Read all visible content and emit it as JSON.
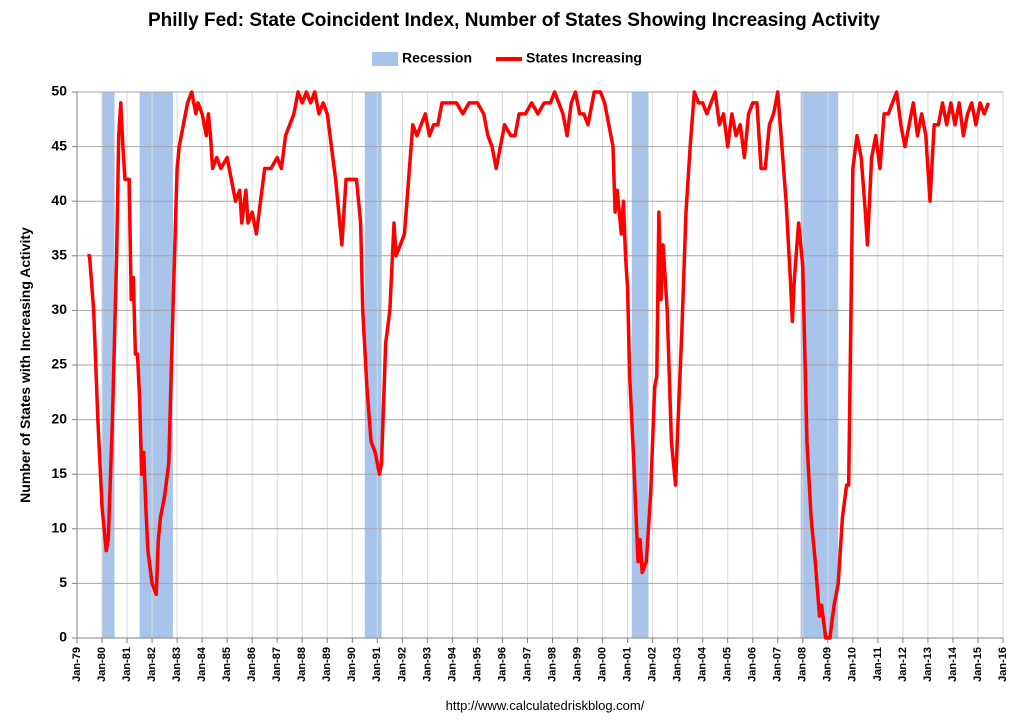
{
  "chart_data": {
    "type": "line",
    "title": "Philly Fed: State Coincident Index, Number of States Showing Increasing Activity",
    "y_label": "Number of States with Increasing Activity",
    "source": "http://www.calculatedriskblog.com/",
    "recessions": {
      "name": "Recession",
      "color": "#a9c4eb",
      "periods": [
        {
          "start": "1980-01",
          "end": "1980-07"
        },
        {
          "start": "1981-07",
          "end": "1982-11"
        },
        {
          "start": "1990-07",
          "end": "1991-03"
        },
        {
          "start": "2001-03",
          "end": "2001-11"
        },
        {
          "start": "2007-12",
          "end": "2009-06"
        }
      ]
    },
    "x": [
      "1979-06",
      "1979-07",
      "1979-09",
      "1979-11",
      "1980-01",
      "1980-03",
      "1980-04",
      "1980-06",
      "1980-08",
      "1980-09",
      "1980-10",
      "1980-11",
      "1980-12",
      "1981-02",
      "1981-03",
      "1981-04",
      "1981-05",
      "1981-06",
      "1981-07",
      "1981-08",
      "1981-09",
      "1981-10",
      "1981-11",
      "1982-01",
      "1982-03",
      "1982-04",
      "1982-05",
      "1982-07",
      "1982-09",
      "1982-11",
      "1983-01",
      "1983-02",
      "1983-04",
      "1983-06",
      "1983-08",
      "1983-10",
      "1983-11",
      "1984-01",
      "1984-03",
      "1984-04",
      "1984-05",
      "1984-06",
      "1984-08",
      "1984-10",
      "1985-01",
      "1985-03",
      "1985-05",
      "1985-07",
      "1985-08",
      "1985-10",
      "1985-11",
      "1986-01",
      "1986-03",
      "1986-05",
      "1986-07",
      "1986-10",
      "1987-01",
      "1987-03",
      "1987-05",
      "1987-07",
      "1987-09",
      "1987-11",
      "1988-01",
      "1988-03",
      "1988-05",
      "1988-07",
      "1988-09",
      "1988-11",
      "1989-01",
      "1989-03",
      "1989-05",
      "1989-07",
      "1989-08",
      "1989-10",
      "1990-01",
      "1990-03",
      "1990-05",
      "1990-06",
      "1990-08",
      "1990-10",
      "1990-12",
      "1991-02",
      "1991-03",
      "1991-05",
      "1991-07",
      "1991-09",
      "1991-10",
      "1991-12",
      "1992-02",
      "1992-04",
      "1992-06",
      "1992-08",
      "1992-10",
      "1992-12",
      "1993-02",
      "1993-04",
      "1993-06",
      "1993-08",
      "1993-12",
      "1994-03",
      "1994-06",
      "1994-09",
      "1995-01",
      "1995-04",
      "1995-06",
      "1995-08",
      "1995-10",
      "1995-12",
      "1996-02",
      "1996-05",
      "1996-07",
      "1996-09",
      "1996-12",
      "1997-03",
      "1997-06",
      "1997-09",
      "1997-12",
      "1998-02",
      "1998-04",
      "1998-06",
      "1998-08",
      "1998-10",
      "1998-12",
      "1999-02",
      "1999-04",
      "1999-06",
      "1999-09",
      "1999-12",
      "2000-02",
      "2000-04",
      "2000-06",
      "2000-07",
      "2000-08",
      "2000-10",
      "2000-11",
      "2000-12",
      "2001-01",
      "2001-02",
      "2001-04",
      "2001-06",
      "2001-07",
      "2001-08",
      "2001-10",
      "2001-12",
      "2002-02",
      "2002-03",
      "2002-04",
      "2002-05",
      "2002-06",
      "2002-08",
      "2002-10",
      "2002-12",
      "2003-01",
      "2003-03",
      "2003-05",
      "2003-07",
      "2003-09",
      "2003-11",
      "2004-01",
      "2004-03",
      "2004-05",
      "2004-07",
      "2004-09",
      "2004-11",
      "2005-01",
      "2005-03",
      "2005-05",
      "2005-07",
      "2005-09",
      "2005-11",
      "2006-01",
      "2006-03",
      "2006-05",
      "2006-07",
      "2006-09",
      "2006-11",
      "2007-01",
      "2007-03",
      "2007-05",
      "2007-07",
      "2007-08",
      "2007-09",
      "2007-11",
      "2008-01",
      "2008-03",
      "2008-05",
      "2008-07",
      "2008-09",
      "2008-10",
      "2008-12",
      "2009-02",
      "2009-04",
      "2009-06",
      "2009-08",
      "2009-10",
      "2009-11",
      "2010-01",
      "2010-03",
      "2010-05",
      "2010-07",
      "2010-08",
      "2010-10",
      "2010-12",
      "2011-02",
      "2011-04",
      "2011-06",
      "2011-08",
      "2011-10",
      "2011-12",
      "2012-02",
      "2012-04",
      "2012-06",
      "2012-08",
      "2012-10",
      "2012-12",
      "2013-02",
      "2013-04",
      "2013-06",
      "2013-08",
      "2013-10",
      "2013-12",
      "2014-02",
      "2014-04",
      "2014-06",
      "2014-08",
      "2014-10",
      "2014-12",
      "2015-02",
      "2015-04",
      "2015-06"
    ],
    "series": [
      {
        "name": "States Increasing",
        "color": "#ff0000",
        "values": [
          35,
          35,
          30,
          20,
          12,
          8,
          9,
          20,
          35,
          46,
          49,
          45,
          42,
          42,
          31,
          33,
          26,
          26,
          22,
          15,
          17,
          12,
          8,
          5,
          4,
          9,
          11,
          13,
          16,
          30,
          43,
          45,
          47,
          49,
          50,
          48,
          49,
          48,
          46,
          48,
          46,
          43,
          44,
          43,
          44,
          42,
          40,
          41,
          38,
          41,
          38,
          39,
          37,
          40,
          43,
          43,
          44,
          43,
          46,
          47,
          48,
          50,
          49,
          50,
          49,
          50,
          48,
          49,
          48,
          45,
          42,
          38,
          36,
          42,
          42,
          42,
          38,
          30,
          23,
          18,
          17,
          15,
          16,
          27,
          30,
          38,
          35,
          36,
          37,
          42,
          47,
          46,
          47,
          48,
          46,
          47,
          47,
          49,
          49,
          49,
          48,
          49,
          49,
          48,
          46,
          45,
          43,
          45,
          47,
          46,
          46,
          48,
          48,
          49,
          48,
          49,
          49,
          50,
          49,
          48,
          46,
          49,
          50,
          48,
          48,
          47,
          50,
          50,
          49,
          47,
          45,
          39,
          41,
          37,
          40,
          35,
          32,
          24,
          16,
          7,
          9,
          6,
          7,
          13,
          23,
          24,
          39,
          31,
          36,
          30,
          18,
          14,
          19,
          28,
          39,
          45,
          50,
          49,
          49,
          48,
          49,
          50,
          47,
          48,
          45,
          48,
          46,
          47,
          44,
          48,
          49,
          49,
          43,
          43,
          47,
          48,
          50,
          45,
          40,
          33,
          29,
          33,
          38,
          34,
          18,
          11,
          7,
          2,
          3,
          0,
          0,
          3,
          5,
          11,
          14,
          14,
          43,
          46,
          44,
          39,
          36,
          44,
          46,
          43,
          48,
          48,
          49,
          50,
          47,
          45,
          47,
          49,
          46,
          48,
          46,
          40,
          47,
          47,
          49,
          47,
          49,
          47,
          49,
          46,
          48,
          49,
          47,
          49,
          48,
          49
        ]
      }
    ],
    "xlim": [
      "1979-01",
      "2016-01"
    ],
    "xticks": [
      {
        "value": "1979-01",
        "label": "Jan-79"
      },
      {
        "value": "1980-01",
        "label": "Jan-80"
      },
      {
        "value": "1981-01",
        "label": "Jan-81"
      },
      {
        "value": "1982-01",
        "label": "Jan-82"
      },
      {
        "value": "1983-01",
        "label": "Jan-83"
      },
      {
        "value": "1984-01",
        "label": "Jan-84"
      },
      {
        "value": "1985-01",
        "label": "Jan-85"
      },
      {
        "value": "1986-01",
        "label": "Jan-86"
      },
      {
        "value": "1987-01",
        "label": "Jan-87"
      },
      {
        "value": "1988-01",
        "label": "Jan-88"
      },
      {
        "value": "1989-01",
        "label": "Jan-89"
      },
      {
        "value": "1990-01",
        "label": "Jan-90"
      },
      {
        "value": "1991-01",
        "label": "Jan-91"
      },
      {
        "value": "1992-01",
        "label": "Jan-92"
      },
      {
        "value": "1993-01",
        "label": "Jan-93"
      },
      {
        "value": "1994-01",
        "label": "Jan-94"
      },
      {
        "value": "1995-01",
        "label": "Jan-95"
      },
      {
        "value": "1996-01",
        "label": "Jan-96"
      },
      {
        "value": "1997-01",
        "label": "Jan-97"
      },
      {
        "value": "1998-01",
        "label": "Jan-98"
      },
      {
        "value": "1999-01",
        "label": "Jan-99"
      },
      {
        "value": "2000-01",
        "label": "Jan-00"
      },
      {
        "value": "2001-01",
        "label": "Jan-01"
      },
      {
        "value": "2002-01",
        "label": "Jan-02"
      },
      {
        "value": "2003-01",
        "label": "Jan-03"
      },
      {
        "value": "2004-01",
        "label": "Jan-04"
      },
      {
        "value": "2005-01",
        "label": "Jan-05"
      },
      {
        "value": "2006-01",
        "label": "Jan-06"
      },
      {
        "value": "2007-01",
        "label": "Jan-07"
      },
      {
        "value": "2008-01",
        "label": "Jan-08"
      },
      {
        "value": "2009-01",
        "label": "Jan-09"
      },
      {
        "value": "2010-01",
        "label": "Jan-10"
      },
      {
        "value": "2011-01",
        "label": "Jan-11"
      },
      {
        "value": "2012-01",
        "label": "Jan-12"
      },
      {
        "value": "2013-01",
        "label": "Jan-13"
      },
      {
        "value": "2014-01",
        "label": "Jan-14"
      },
      {
        "value": "2015-01",
        "label": "Jan-15"
      },
      {
        "value": "2016-01",
        "label": "Jan-16"
      }
    ],
    "ylim": [
      0,
      50
    ],
    "yticks": [
      0,
      5,
      10,
      15,
      20,
      25,
      30,
      35,
      40,
      45,
      50
    ],
    "grid": true,
    "legend": "top"
  }
}
